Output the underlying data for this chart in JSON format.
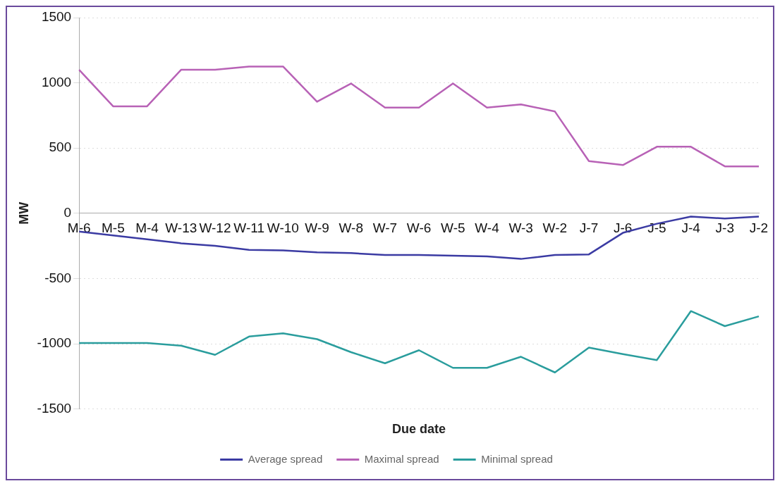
{
  "chart_data": {
    "type": "line",
    "xlabel": "Due date",
    "ylabel": "MW",
    "categories": [
      "M-6",
      "M-5",
      "M-4",
      "W-13",
      "W-12",
      "W-11",
      "W-10",
      "W-9",
      "W-8",
      "W-7",
      "W-6",
      "W-5",
      "W-4",
      "W-3",
      "W-2",
      "J-7",
      "J-6",
      "J-5",
      "J-4",
      "J-3",
      "J-2"
    ],
    "series": [
      {
        "name": "Average spread",
        "color": "#3b3ba3",
        "values": [
          -140,
          -170,
          -200,
          -230,
          -250,
          -280,
          -285,
          -300,
          -305,
          -320,
          -320,
          -325,
          -330,
          -350,
          -320,
          -315,
          -150,
          -80,
          -25,
          -40,
          -25
        ]
      },
      {
        "name": "Maximal spread",
        "color": "#b862b6",
        "values": [
          1100,
          820,
          820,
          1100,
          1100,
          1125,
          1125,
          855,
          995,
          810,
          810,
          995,
          810,
          835,
          780,
          400,
          370,
          510,
          510,
          360,
          360
        ]
      },
      {
        "name": "Minimal spread",
        "color": "#2a9d9d",
        "values": [
          -995,
          -995,
          -995,
          -1015,
          -1085,
          -945,
          -920,
          -965,
          -1065,
          -1150,
          -1050,
          -1185,
          -1185,
          -1100,
          -1220,
          -1030,
          -1080,
          -1125,
          -750,
          -865,
          -790
        ]
      }
    ],
    "ylim": [
      -1500,
      1500
    ],
    "yticks": [
      -1500,
      -1000,
      -500,
      0,
      500,
      1000,
      1500
    ],
    "grid": "y",
    "legend": "bottom",
    "marker": "none",
    "line_style": "solid"
  }
}
